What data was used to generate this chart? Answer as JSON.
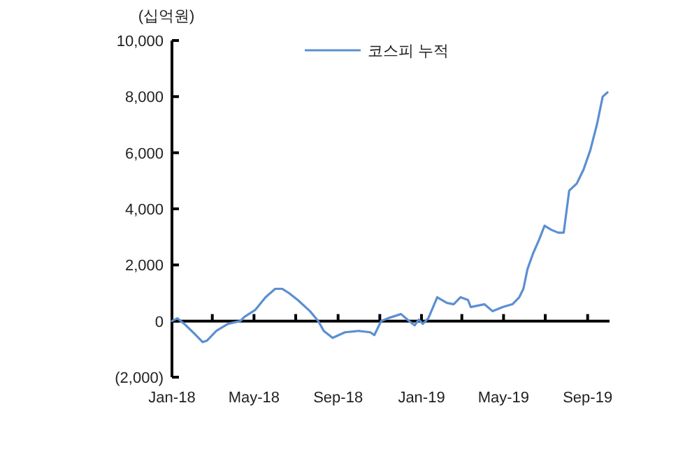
{
  "chart_data": {
    "type": "line",
    "ylabel": "(십억원)",
    "x": [
      "2018-01-01",
      "2018-01-09",
      "2018-01-19",
      "2018-02-05",
      "2018-02-15",
      "2018-02-21",
      "2018-03-07",
      "2018-03-24",
      "2018-04-11",
      "2018-04-17",
      "2018-05-03",
      "2018-05-18",
      "2018-06-01",
      "2018-06-11",
      "2018-06-21",
      "2018-07-04",
      "2018-07-22",
      "2018-08-03",
      "2018-08-11",
      "2018-08-24",
      "2018-09-11",
      "2018-10-01",
      "2018-10-18",
      "2018-10-24",
      "2018-11-03",
      "2018-11-13",
      "2018-12-02",
      "2018-12-14",
      "2018-12-22",
      "2018-12-28",
      "2019-01-03",
      "2019-01-11",
      "2019-01-24",
      "2019-02-07",
      "2019-02-17",
      "2019-02-27",
      "2019-03-10",
      "2019-03-14",
      "2019-04-03",
      "2019-04-15",
      "2019-04-30",
      "2019-05-14",
      "2019-05-24",
      "2019-05-30",
      "2019-06-05",
      "2019-06-13",
      "2019-06-22",
      "2019-06-30",
      "2019-07-10",
      "2019-07-20",
      "2019-07-28",
      "2019-08-05",
      "2019-08-16",
      "2019-08-26",
      "2019-09-05",
      "2019-09-15",
      "2019-09-23",
      "2019-09-30"
    ],
    "series": [
      {
        "name": "코스피 누적",
        "color": "#5b8fd1",
        "values": [
          0,
          100,
          -100,
          -500,
          -750,
          -700,
          -350,
          -100,
          0,
          150,
          400,
          850,
          1150,
          1150,
          1000,
          750,
          350,
          0,
          -350,
          -600,
          -400,
          -350,
          -400,
          -500,
          0,
          100,
          250,
          0,
          -150,
          50,
          -100,
          100,
          850,
          650,
          600,
          850,
          750,
          500,
          600,
          350,
          500,
          600,
          850,
          1150,
          1850,
          2400,
          2900,
          3400,
          3250,
          3150,
          3150,
          4650,
          4900,
          5400,
          6100,
          7050,
          8000,
          8150
        ]
      }
    ],
    "xlim": [
      "2018-01-01",
      "2019-10-03"
    ],
    "xticks": [
      {
        "value": "2018-01-01",
        "label": "Jan-18"
      },
      {
        "value": "2018-03-01",
        "label": null
      },
      {
        "value": "2018-05-01",
        "label": "May-18"
      },
      {
        "value": "2018-07-01",
        "label": null
      },
      {
        "value": "2018-09-01",
        "label": "Sep-18"
      },
      {
        "value": "2018-11-01",
        "label": null
      },
      {
        "value": "2019-01-01",
        "label": "Jan-19"
      },
      {
        "value": "2019-03-01",
        "label": null
      },
      {
        "value": "2019-05-01",
        "label": "May-19"
      },
      {
        "value": "2019-07-01",
        "label": null
      },
      {
        "value": "2019-09-01",
        "label": "Sep-19"
      }
    ],
    "ylim": [
      -2000,
      10000
    ],
    "yticks": [
      {
        "value": -2000,
        "label": "(2,000)"
      },
      0,
      {
        "value": 2000,
        "label": "2,000"
      },
      {
        "value": 4000,
        "label": "4,000"
      },
      {
        "value": 6000,
        "label": "6,000"
      },
      {
        "value": 8000,
        "label": "8,000"
      },
      {
        "value": 10000,
        "label": "10,000"
      }
    ],
    "legend": "top",
    "line_style": "solid",
    "marker": "none"
  }
}
